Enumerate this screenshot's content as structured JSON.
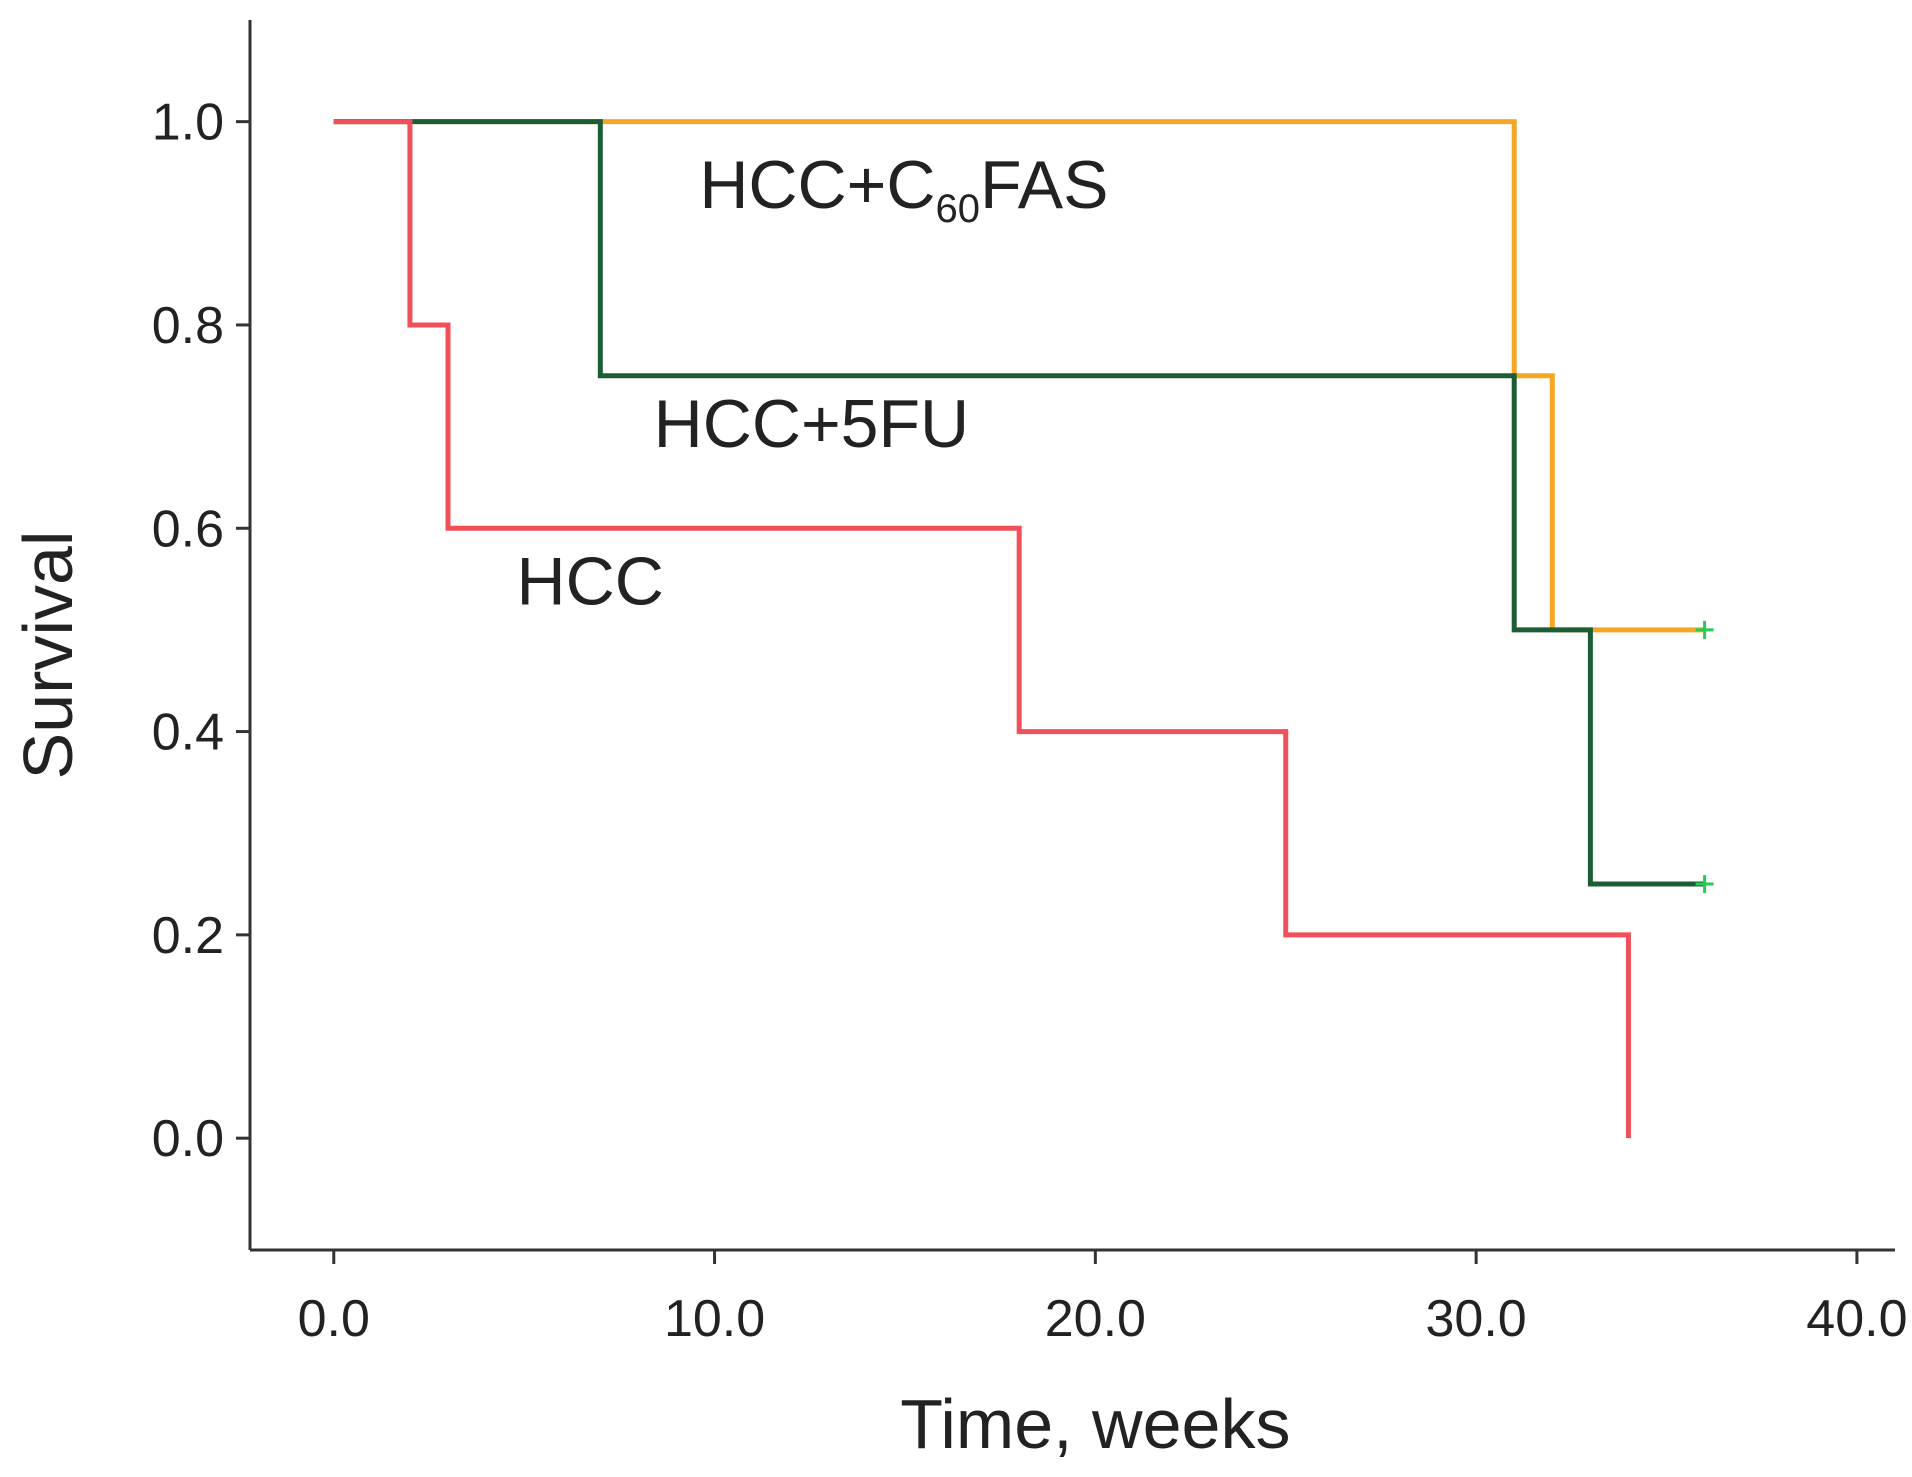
{
  "chart_data": {
    "type": "line",
    "subtype": "kaplan-meier step",
    "title": "",
    "xlabel": "Time, weeks",
    "ylabel": "Survival",
    "xlim": [
      -2.2,
      41.0
    ],
    "ylim": [
      -0.11,
      1.1
    ],
    "x_ticks": [
      0,
      10,
      20,
      30,
      40
    ],
    "x_tick_labels": [
      "0.0",
      "10.0",
      "20.0",
      "30.0",
      "40.0"
    ],
    "y_ticks": [
      0,
      0.2,
      0.4,
      0.6,
      0.8,
      1.0
    ],
    "y_tick_labels": [
      "0.0",
      "0.2",
      "0.4",
      "0.6",
      "0.8",
      "1.0"
    ],
    "grid": false,
    "legend": "none (inline series labels)",
    "series": [
      {
        "id": "hcc-c60fas",
        "name": "HCC+C60FAS",
        "label_main": "HCC+C",
        "label_sub": "60",
        "label_tail": "FAS",
        "color": "#F5A623",
        "x": [
          0,
          31,
          32,
          36
        ],
        "y": [
          1.0,
          0.75,
          0.5,
          0.5
        ],
        "censor_at": [
          36,
          0.5
        ]
      },
      {
        "id": "hcc-5fu",
        "name": "HCC+5FU",
        "label_main": "HCC+5FU",
        "color": "#1B5E35",
        "x": [
          0,
          7,
          31,
          33,
          36
        ],
        "y": [
          1.0,
          0.75,
          0.5,
          0.25,
          0.25
        ],
        "censor_at": [
          36,
          0.25
        ]
      },
      {
        "id": "hcc",
        "name": "HCC",
        "label_main": "HCC",
        "color": "#F0505A",
        "x": [
          0,
          2,
          3,
          18,
          25,
          34,
          34
        ],
        "y": [
          1.0,
          0.8,
          0.6,
          0.4,
          0.2,
          0.0,
          0.0
        ]
      }
    ],
    "censor_color": "#22CC55"
  }
}
